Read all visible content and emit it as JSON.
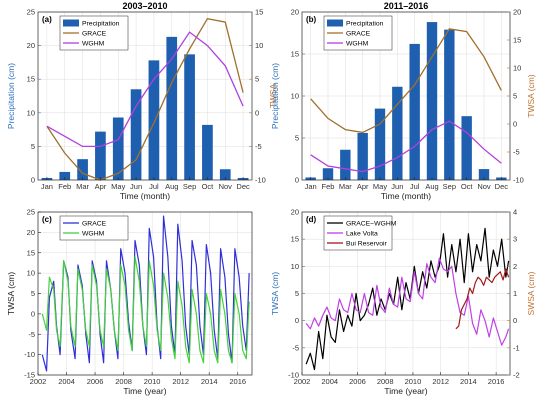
{
  "chart_data": [
    {
      "type": "bar",
      "panel_label": "(a)",
      "title": "2003–2010",
      "categories": [
        "Jan",
        "Feb",
        "Mar",
        "Apr",
        "May",
        "Jun",
        "Jul",
        "Aug",
        "Sep",
        "Oct",
        "Nov",
        "Dec"
      ],
      "xlabel": "Time (month)",
      "ylabel": "Precipitation (cm)",
      "ylim": [
        0,
        25
      ],
      "yticks": [
        0,
        5,
        10,
        15,
        20,
        25
      ],
      "y2label": "TWSA",
      "y2lim": [
        -10,
        15
      ],
      "y2ticks": [
        -10,
        -5,
        0,
        5,
        10,
        15
      ],
      "legend_position": "top-left",
      "series": [
        {
          "name": "Precipitation",
          "kind": "bar",
          "axis": "left",
          "color": "#1f5fb0",
          "values": [
            0.3,
            1.2,
            3.1,
            7.2,
            9.3,
            13.5,
            17.8,
            21.3,
            18.7,
            8.2,
            1.6,
            0.3
          ]
        },
        {
          "name": "GRACE",
          "kind": "line",
          "axis": "right",
          "color": "#a0702c",
          "values": [
            -2.0,
            -6.0,
            -9.0,
            -10.0,
            -9.0,
            -7.0,
            -1.5,
            4.5,
            9.5,
            14.0,
            13.5,
            3.0
          ]
        },
        {
          "name": "WGHM",
          "kind": "line",
          "axis": "right",
          "color": "#b040e0",
          "values": [
            -2.0,
            -3.5,
            -5.0,
            -5.0,
            -4.0,
            1.0,
            5.0,
            8.0,
            12.0,
            10.0,
            7.0,
            1.0
          ]
        }
      ]
    },
    {
      "type": "bar",
      "panel_label": "(b)",
      "title": "2011–2016",
      "categories": [
        "Jan",
        "Feb",
        "Mar",
        "Apr",
        "May",
        "Jun",
        "Jul",
        "Aug",
        "Sep",
        "Oct",
        "Nov",
        "Dec"
      ],
      "xlabel": "Time (month)",
      "ylabel": "Precipitation (cm)",
      "ylim": [
        0,
        20
      ],
      "yticks": [
        0,
        5,
        10,
        15,
        20
      ],
      "y2label": "TWSA (cm)",
      "y2lim": [
        -10,
        20
      ],
      "y2ticks": [
        -10,
        -5,
        0,
        5,
        10,
        15,
        20
      ],
      "legend_position": "top-left",
      "series": [
        {
          "name": "Precipitation",
          "kind": "bar",
          "axis": "left",
          "color": "#1f5fb0",
          "values": [
            0.3,
            1.4,
            3.6,
            5.6,
            8.5,
            11.1,
            16.2,
            18.8,
            17.9,
            7.6,
            1.3,
            0.3
          ]
        },
        {
          "name": "GRACE",
          "kind": "line",
          "axis": "right",
          "color": "#a0702c",
          "values": [
            4.5,
            1.0,
            -1.0,
            -1.5,
            0.0,
            3.5,
            7.0,
            12.0,
            17.0,
            16.5,
            12.0,
            6.0
          ]
        },
        {
          "name": "WGHM",
          "kind": "line",
          "axis": "right",
          "color": "#b040e0",
          "values": [
            -5.5,
            -7.5,
            -8.0,
            -8.5,
            -7.5,
            -6.0,
            -4.0,
            -1.0,
            0.5,
            -1.5,
            -4.5,
            -7.0
          ]
        }
      ]
    },
    {
      "type": "line",
      "panel_label": "(c)",
      "xlabel": "Time (year)",
      "ylabel": "TWSA (cm)",
      "xlim": [
        2002,
        2017
      ],
      "xticks": [
        2002,
        2004,
        2006,
        2008,
        2010,
        2012,
        2014,
        2016
      ],
      "ylim": [
        -15,
        25
      ],
      "yticks": [
        -15,
        -10,
        -5,
        0,
        5,
        10,
        15,
        20,
        25
      ],
      "legend_position": "top-left",
      "series": [
        {
          "name": "GRACE",
          "color": "#2f2fd8",
          "x": [
            2002.3,
            2002.6,
            2002.8,
            2003.1,
            2003.3,
            2003.55,
            2003.8,
            2004.1,
            2004.3,
            2004.6,
            2004.8,
            2005.1,
            2005.35,
            2005.6,
            2005.8,
            2006.1,
            2006.35,
            2006.6,
            2006.8,
            2007.1,
            2007.35,
            2007.6,
            2007.8,
            2008.1,
            2008.35,
            2008.6,
            2008.8,
            2009.1,
            2009.35,
            2009.6,
            2009.8,
            2010.1,
            2010.35,
            2010.6,
            2010.8,
            2011.1,
            2011.35,
            2011.6,
            2011.8,
            2012.1,
            2012.35,
            2012.6,
            2012.8,
            2013.1,
            2013.35,
            2013.6,
            2013.8,
            2014.1,
            2014.35,
            2014.6,
            2014.8,
            2015.1,
            2015.35,
            2015.6,
            2015.8,
            2016.1,
            2016.35,
            2016.6,
            2016.8
          ],
          "y": [
            -10,
            -14,
            4,
            8,
            -3,
            -10,
            13,
            9,
            -4,
            -11,
            12,
            7,
            -5,
            -12,
            13,
            8,
            -5,
            -12,
            13,
            6,
            -4,
            -11,
            16,
            10,
            -2,
            -9,
            18,
            12,
            -3,
            -10,
            21,
            14,
            -3,
            -11,
            24,
            14,
            -3,
            -10,
            22,
            13,
            -3,
            -10,
            18,
            12,
            -3,
            -10,
            17,
            10,
            -4,
            -11,
            16,
            9,
            -5,
            -12,
            16,
            9,
            -3,
            -9,
            10
          ]
        },
        {
          "name": "WGHM",
          "color": "#45d03a",
          "x": [
            2002.3,
            2002.6,
            2002.8,
            2003.1,
            2003.3,
            2003.55,
            2003.8,
            2004.1,
            2004.3,
            2004.6,
            2004.8,
            2005.1,
            2005.35,
            2005.6,
            2005.8,
            2006.1,
            2006.35,
            2006.6,
            2006.8,
            2007.1,
            2007.35,
            2007.6,
            2007.8,
            2008.1,
            2008.35,
            2008.6,
            2008.8,
            2009.1,
            2009.35,
            2009.6,
            2009.8,
            2010.1,
            2010.35,
            2010.6,
            2010.8,
            2011.1,
            2011.35,
            2011.6,
            2011.8,
            2012.1,
            2012.35,
            2012.6,
            2012.8,
            2013.1,
            2013.35,
            2013.6,
            2013.8,
            2014.1,
            2014.35,
            2014.6,
            2014.8,
            2015.1,
            2015.35,
            2015.6,
            2015.8,
            2016.1,
            2016.35,
            2016.6,
            2016.8
          ],
          "y": [
            0,
            -4,
            9,
            6,
            -4,
            -8,
            13,
            8,
            -3,
            -8,
            11,
            6,
            -4,
            -8,
            12,
            7,
            -4,
            -8,
            11,
            6,
            -4,
            -9,
            12,
            7,
            -4,
            -9,
            14,
            8,
            -3,
            -8,
            13,
            7,
            -4,
            -9,
            10,
            4,
            -6,
            -11,
            8,
            2,
            -8,
            -12,
            6,
            0,
            -9,
            -12,
            5,
            0,
            -9,
            -12,
            6,
            0,
            -9,
            -12,
            5,
            0,
            -9,
            -11,
            3
          ]
        }
      ]
    },
    {
      "type": "line",
      "panel_label": "(d)",
      "xlabel": "Time (year)",
      "ylabel": "TWSA (cm)",
      "y2label": "SWSA (cm)",
      "xlim": [
        2002,
        2017
      ],
      "xticks": [
        2002,
        2004,
        2006,
        2008,
        2010,
        2012,
        2014,
        2016
      ],
      "ylim": [
        -10,
        20
      ],
      "yticks": [
        -10,
        -5,
        0,
        5,
        10,
        15,
        20
      ],
      "y2lim": [
        -2,
        4
      ],
      "y2ticks": [
        -2,
        -1,
        0,
        1,
        2,
        3,
        4
      ],
      "legend_position": "top-left",
      "series": [
        {
          "name": "GRACE−WGHM",
          "axis": "left",
          "color": "#000000",
          "x": [
            2002.3,
            2002.6,
            2002.9,
            2003.2,
            2003.5,
            2003.8,
            2004.1,
            2004.4,
            2004.7,
            2005.0,
            2005.3,
            2005.6,
            2005.9,
            2006.2,
            2006.5,
            2006.8,
            2007.1,
            2007.4,
            2007.7,
            2008.0,
            2008.3,
            2008.6,
            2008.9,
            2009.2,
            2009.5,
            2009.8,
            2010.1,
            2010.4,
            2010.7,
            2011.0,
            2011.3,
            2011.6,
            2011.9,
            2012.2,
            2012.5,
            2012.8,
            2013.1,
            2013.4,
            2013.7,
            2014.0,
            2014.3,
            2014.6,
            2014.9,
            2015.2,
            2015.5,
            2015.8,
            2016.1,
            2016.4,
            2016.7,
            2016.9
          ],
          "y": [
            -8,
            -6,
            -9,
            -2,
            -7,
            1,
            -3,
            -4,
            2,
            -2,
            1,
            -1,
            5,
            0,
            1,
            3,
            6,
            1,
            4,
            2,
            5,
            3,
            8,
            2,
            7,
            4,
            10,
            5,
            9,
            6,
            11,
            8,
            10,
            16,
            8,
            14,
            9,
            15,
            7,
            16,
            9,
            14,
            11,
            17,
            8,
            13,
            10,
            15,
            8,
            11
          ]
        },
        {
          "name": "Lake Volta",
          "axis": "right",
          "color": "#c040e8",
          "x": [
            2002.3,
            2002.6,
            2002.9,
            2003.2,
            2003.5,
            2003.8,
            2004.1,
            2004.4,
            2004.7,
            2005.0,
            2005.3,
            2005.6,
            2005.9,
            2006.2,
            2006.5,
            2006.8,
            2007.1,
            2007.4,
            2007.7,
            2008.0,
            2008.3,
            2008.6,
            2008.9,
            2009.2,
            2009.5,
            2009.8,
            2010.1,
            2010.4,
            2010.7,
            2011.0,
            2011.3,
            2011.6,
            2011.9,
            2012.2,
            2012.5,
            2012.8,
            2013.1,
            2013.4,
            2013.7,
            2014.0,
            2014.3,
            2014.6,
            2014.9,
            2015.2,
            2015.5,
            2015.8,
            2016.1,
            2016.4,
            2016.7,
            2016.9
          ],
          "y": [
            -0.1,
            -0.3,
            0.1,
            -0.2,
            0.2,
            0.5,
            0.1,
            0.0,
            0.8,
            0.4,
            0.3,
            1.0,
            0.4,
            0.3,
            1.0,
            0.3,
            0.2,
            1.3,
            0.5,
            0.3,
            1.2,
            0.6,
            0.5,
            1.6,
            0.8,
            0.7,
            1.8,
            1.0,
            0.8,
            2.1,
            1.6,
            1.4,
            2.3,
            1.9,
            1.8,
            2.0,
            1.0,
            0.3,
            0.2,
            0.9,
            -0.1,
            -0.5,
            0.4,
            0.0,
            -0.6,
            0.1,
            -0.4,
            -0.9,
            -0.6,
            -0.3
          ]
        },
        {
          "name": "Bui Reservoir",
          "axis": "right",
          "color": "#a01a1a",
          "x": [
            2013.1,
            2013.3,
            2013.5,
            2013.7,
            2013.9,
            2014.1,
            2014.3,
            2014.5,
            2014.7,
            2014.9,
            2015.1,
            2015.3,
            2015.5,
            2015.7,
            2015.9,
            2016.1,
            2016.3,
            2016.5,
            2016.7,
            2016.9
          ],
          "y": [
            -0.3,
            -0.2,
            0.4,
            0.6,
            0.8,
            1.2,
            1.0,
            1.4,
            1.6,
            1.5,
            1.3,
            1.6,
            1.5,
            1.4,
            1.6,
            1.7,
            1.8,
            1.5,
            1.9,
            1.6
          ]
        }
      ]
    }
  ]
}
